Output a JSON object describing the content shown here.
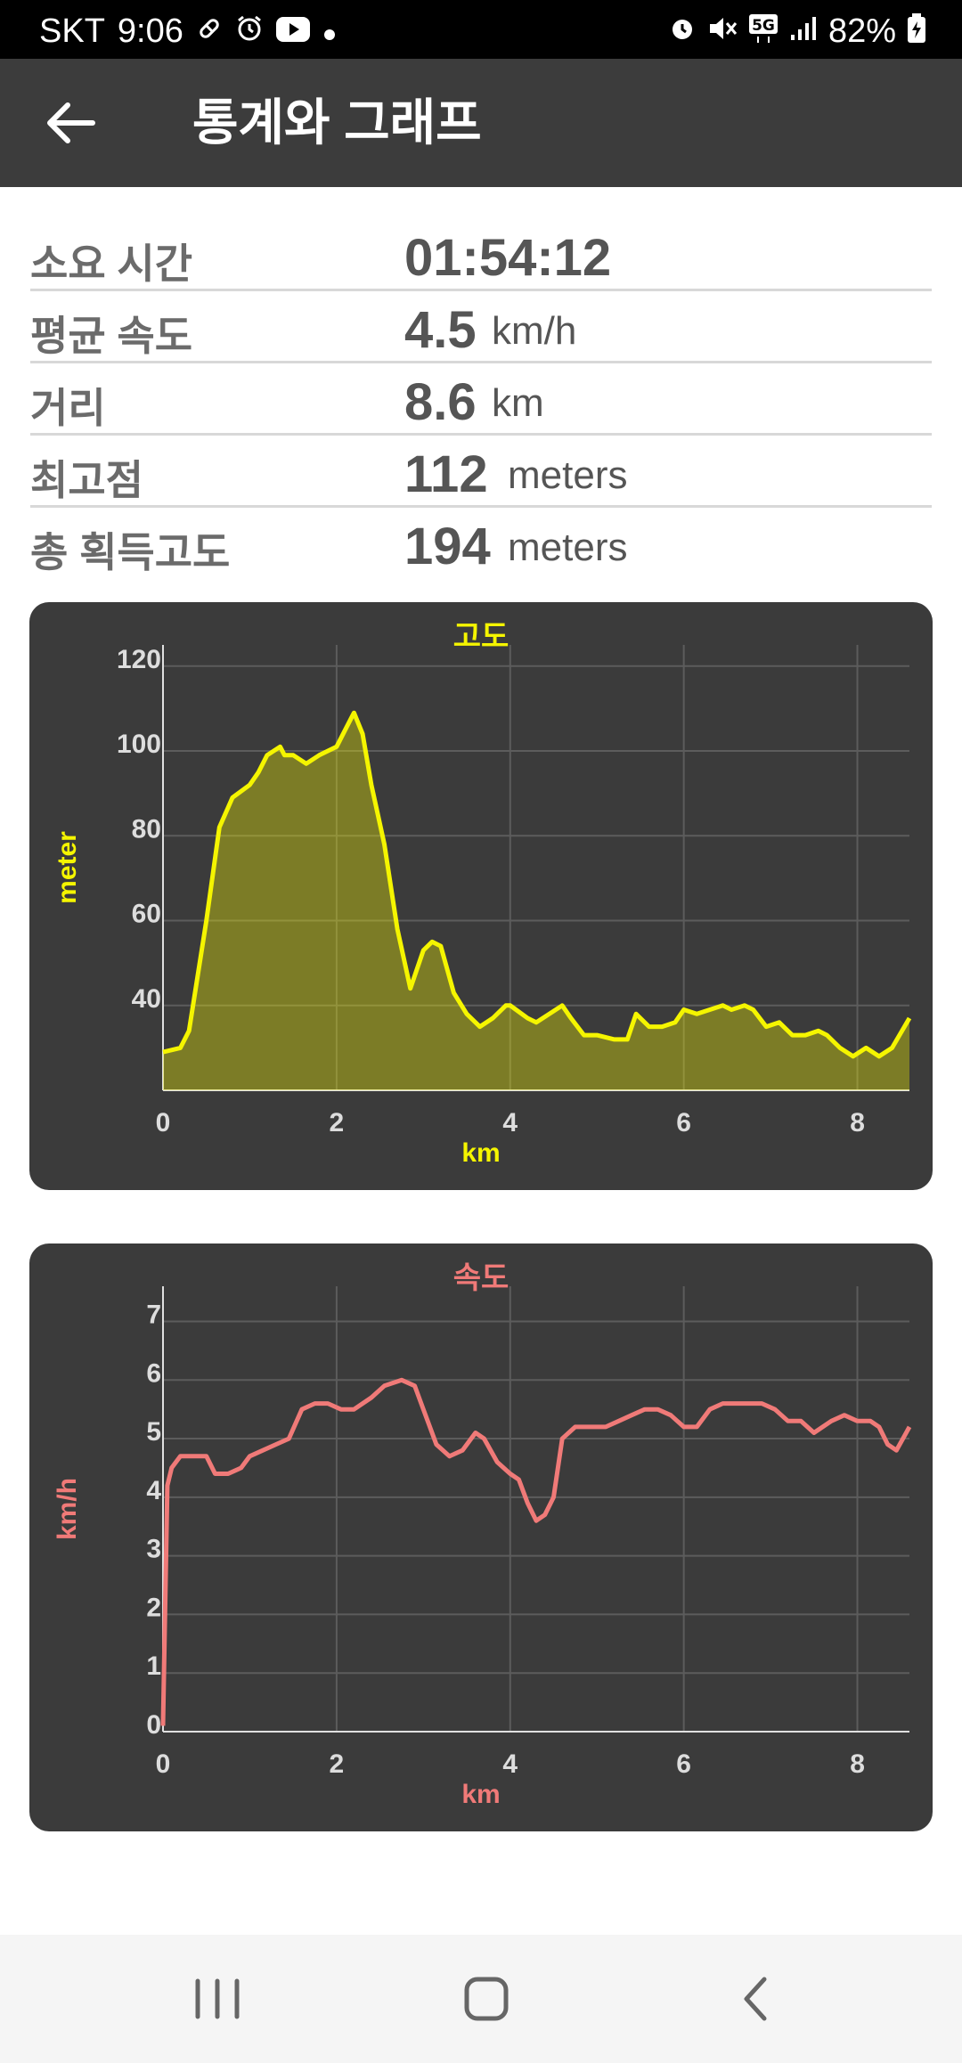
{
  "status_bar": {
    "carrier": "SKT",
    "time": "9:06",
    "battery": "82%",
    "network": "5G"
  },
  "app_bar": {
    "title": "통계와 그래프"
  },
  "stats": [
    {
      "label": "소요 시간",
      "value": "01:54:12",
      "unit": ""
    },
    {
      "label": "평균 속도",
      "value": "4.5",
      "unit": "km/h"
    },
    {
      "label": "거리",
      "value": "8.6",
      "unit": "km"
    },
    {
      "label": "최고점",
      "value": "112",
      "unit": "meters"
    },
    {
      "label": "총 획득고도",
      "value": "194",
      "unit": "meters"
    }
  ],
  "chart_data": [
    {
      "type": "area",
      "title": "고도",
      "xlabel": "km",
      "ylabel": "meter",
      "color": "#f5f500",
      "xlim": [
        0,
        8.6
      ],
      "ylim": [
        20,
        125
      ],
      "xticks": [
        0,
        2,
        4,
        6,
        8
      ],
      "yticks": [
        40,
        60,
        80,
        100,
        120
      ],
      "x": [
        0,
        0.2,
        0.3,
        0.5,
        0.65,
        0.8,
        1.0,
        1.1,
        1.2,
        1.35,
        1.4,
        1.5,
        1.65,
        1.8,
        2.0,
        2.1,
        2.2,
        2.3,
        2.4,
        2.55,
        2.7,
        2.85,
        3.0,
        3.1,
        3.2,
        3.35,
        3.5,
        3.65,
        3.8,
        3.95,
        4.0,
        4.2,
        4.3,
        4.45,
        4.6,
        4.7,
        4.85,
        5.0,
        5.2,
        5.35,
        5.45,
        5.6,
        5.75,
        5.9,
        6.0,
        6.15,
        6.3,
        6.45,
        6.55,
        6.7,
        6.8,
        6.95,
        7.1,
        7.25,
        7.4,
        7.55,
        7.65,
        7.8,
        7.95,
        8.1,
        8.25,
        8.4,
        8.6
      ],
      "y": [
        29,
        30,
        34,
        60,
        82,
        89,
        92,
        95,
        99,
        101,
        99,
        99,
        97,
        99,
        101,
        105,
        109,
        104,
        92,
        78,
        58,
        44,
        53,
        55,
        54,
        43,
        38,
        35,
        37,
        40,
        40,
        37,
        36,
        38,
        40,
        37,
        33,
        33,
        32,
        32,
        38,
        35,
        35,
        36,
        39,
        38,
        39,
        40,
        39,
        40,
        39,
        35,
        36,
        33,
        33,
        34,
        33,
        30,
        28,
        30,
        28,
        30,
        37
      ]
    },
    {
      "type": "line",
      "title": "속도",
      "xlabel": "km",
      "ylabel": "km/h",
      "color": "#f07a78",
      "xlim": [
        0,
        8.6
      ],
      "ylim": [
        0,
        7.6
      ],
      "xticks": [
        0,
        2,
        4,
        6,
        8
      ],
      "yticks": [
        0,
        1,
        2,
        3,
        4,
        5,
        6,
        7
      ],
      "x": [
        0,
        0.05,
        0.1,
        0.2,
        0.35,
        0.5,
        0.6,
        0.75,
        0.9,
        1.0,
        1.15,
        1.3,
        1.45,
        1.6,
        1.75,
        1.9,
        2.05,
        2.2,
        2.4,
        2.55,
        2.75,
        2.9,
        3.0,
        3.15,
        3.3,
        3.45,
        3.6,
        3.7,
        3.85,
        4.0,
        4.1,
        4.2,
        4.3,
        4.4,
        4.5,
        4.6,
        4.75,
        4.95,
        5.1,
        5.25,
        5.4,
        5.55,
        5.7,
        5.85,
        6.0,
        6.15,
        6.3,
        6.45,
        6.6,
        6.75,
        6.9,
        7.05,
        7.2,
        7.35,
        7.5,
        7.7,
        7.85,
        8.0,
        8.15,
        8.25,
        8.35,
        8.45,
        8.6
      ],
      "y": [
        0.1,
        4.2,
        4.5,
        4.7,
        4.7,
        4.7,
        4.4,
        4.4,
        4.5,
        4.7,
        4.8,
        4.9,
        5.0,
        5.5,
        5.6,
        5.6,
        5.5,
        5.5,
        5.7,
        5.9,
        6.0,
        5.9,
        5.5,
        4.9,
        4.7,
        4.8,
        5.1,
        5.0,
        4.6,
        4.4,
        4.3,
        3.9,
        3.6,
        3.7,
        4.0,
        5.0,
        5.2,
        5.2,
        5.2,
        5.3,
        5.4,
        5.5,
        5.5,
        5.4,
        5.2,
        5.2,
        5.5,
        5.6,
        5.6,
        5.6,
        5.6,
        5.5,
        5.3,
        5.3,
        5.1,
        5.3,
        5.4,
        5.3,
        5.3,
        5.2,
        4.9,
        4.8,
        5.2
      ]
    }
  ]
}
